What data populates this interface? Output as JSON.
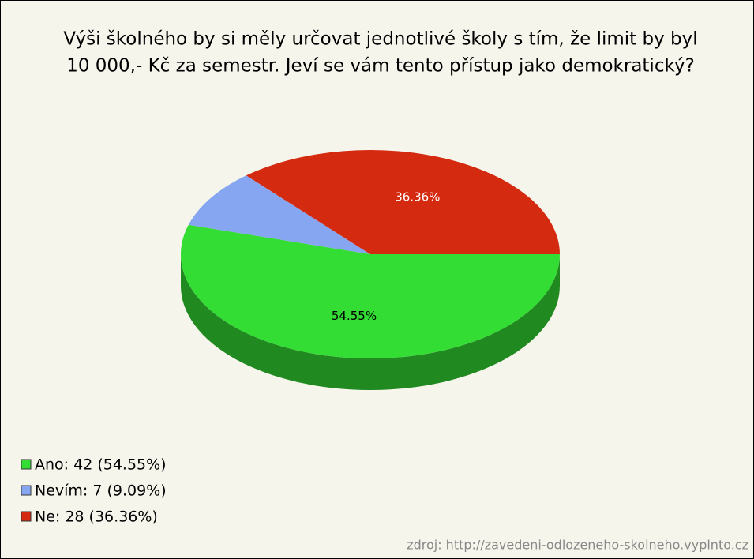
{
  "chart_data": {
    "type": "pie",
    "title": [
      "Výši školného by si měly určovat jednotlivé školy s tím, že limit by byl",
      "10 000,- Kč za semestr. Jeví se vám tento přístup jako demokratický?"
    ],
    "categories": [
      "Ano: 42 (54.55%)",
      "Nevím: 7 (9.09%)",
      "Ne: 28 (36.36%)"
    ],
    "values": [
      54.55,
      9.09,
      36.36
    ],
    "value_labels": [
      "54.55%",
      null,
      "36.36%"
    ],
    "colors": [
      "#33dd33",
      "#86a6f2",
      "#d42a10"
    ],
    "label_colors": [
      "#000000",
      null,
      "#ffffff"
    ],
    "source": "zdroj: http://zavedeni-odlozeneho-skolneho.vyplnto.cz"
  }
}
